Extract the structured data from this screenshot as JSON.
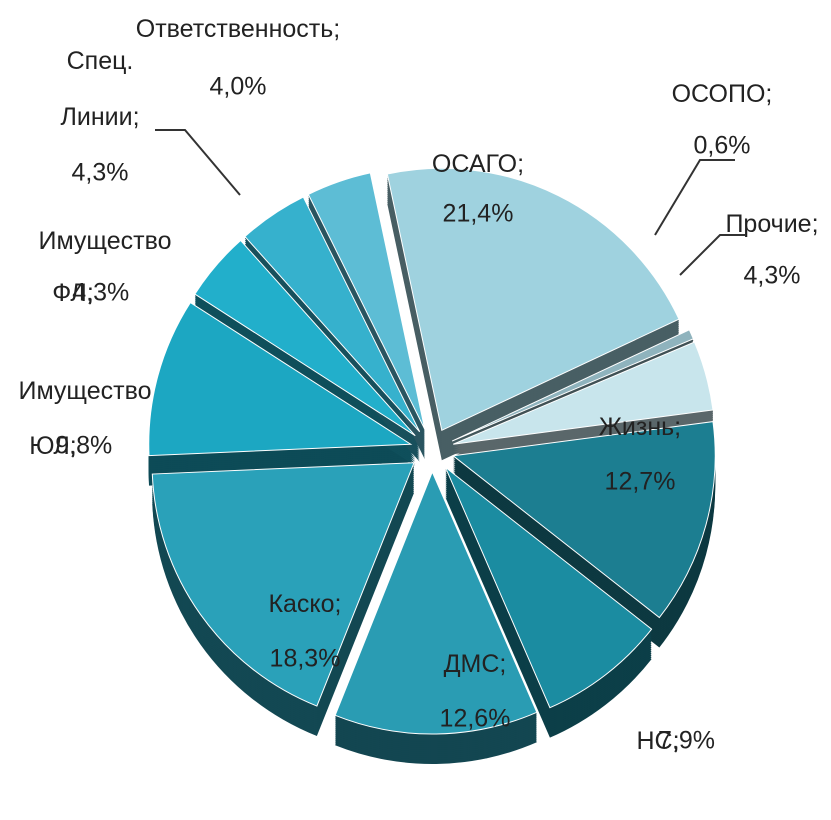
{
  "chart_data": {
    "type": "pie",
    "categories": [
      "ОСАГО;",
      "ОСОПО;",
      "Прочие;",
      "Жизнь;",
      "НС;",
      "ДМС;",
      "Каско;",
      "Имущество ЮЛ;",
      "Имущество ФЛ;",
      "Спец. Линии;",
      "Ответственность;"
    ],
    "values": [
      21.4,
      0.6,
      4.3,
      12.7,
      7.9,
      12.6,
      18.3,
      9.8,
      4.3,
      4.3,
      4.0
    ],
    "value_labels": [
      "21,4%",
      "0,6%",
      "4,3%",
      "12,7%",
      "7,9%",
      "12,6%",
      "18,3%",
      "9,8%",
      "4,3%",
      "4,3%",
      "4,0%"
    ],
    "colors": [
      "#9fd2df",
      "#8fb3bd",
      "#c8e5ec",
      "#1c7e91",
      "#1b8ca1",
      "#2a9cb3",
      "#2aa1b9",
      "#1ca7c2",
      "#22afcb",
      "#36b1cd",
      "#5dbdd5"
    ]
  }
}
